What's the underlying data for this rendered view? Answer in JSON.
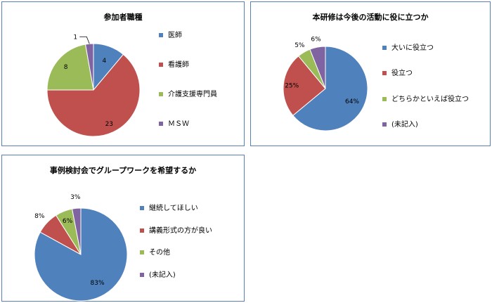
{
  "colors": {
    "blue": "#4f81bd",
    "red": "#c0504d",
    "green": "#9bbb59",
    "purple": "#8064a2"
  },
  "chart_data": [
    {
      "type": "pie",
      "title": "参加者職種",
      "categories": [
        "医師",
        "看護師",
        "介護支援専門員",
        "ＭＳＷ"
      ],
      "values": [
        4,
        23,
        8,
        1
      ],
      "data_labels": [
        "4",
        "23",
        "8",
        "1"
      ],
      "legend": "right"
    },
    {
      "type": "pie",
      "title": "本研修は今後の活動に役に立つか",
      "categories": [
        "大いに役立つ",
        "役立つ",
        "どちらかといえば役立つ",
        "(未記入)"
      ],
      "values": [
        64,
        25,
        5,
        6
      ],
      "data_labels": [
        "64%",
        "25%",
        "5%",
        "6%"
      ],
      "legend": "right"
    },
    {
      "type": "pie",
      "title": "事例検討会でグループワークを希望するか",
      "categories": [
        "継続してほしい",
        "講義形式の方が良い",
        "その他",
        "(未記入)"
      ],
      "values": [
        83,
        8,
        6,
        3
      ],
      "data_labels": [
        "83%",
        "8%",
        "6%",
        "3%"
      ],
      "legend": "right"
    }
  ]
}
